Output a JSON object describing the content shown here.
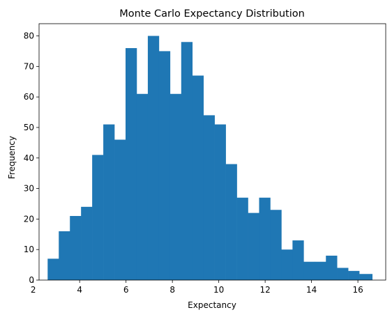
{
  "chart_data": {
    "type": "bar",
    "title": "Monte Carlo Expectancy Distribution",
    "xlabel": "Expectancy",
    "ylabel": "Frequency",
    "xlim": [
      2.25,
      17.2
    ],
    "ylim": [
      0,
      84
    ],
    "grid": false,
    "bar_color": "#1f77b4",
    "bin_edges": [
      2.62,
      3.1,
      3.58,
      4.06,
      4.54,
      5.02,
      5.5,
      5.98,
      6.46,
      6.94,
      7.42,
      7.9,
      8.38,
      8.86,
      9.34,
      9.82,
      10.3,
      10.78,
      11.26,
      11.74,
      12.22,
      12.7,
      13.18,
      13.66,
      14.14,
      14.62,
      15.1,
      15.58,
      16.06,
      16.54,
      16.62
    ],
    "values": [
      7,
      16,
      21,
      24,
      41,
      51,
      46,
      76,
      61,
      80,
      75,
      61,
      78,
      67,
      54,
      51,
      38,
      27,
      22,
      27,
      23,
      10,
      13,
      6,
      6,
      8,
      4,
      3,
      2,
      2
    ],
    "xticks": [
      2,
      4,
      6,
      8,
      10,
      12,
      14,
      16
    ],
    "yticks": [
      0,
      10,
      20,
      30,
      40,
      50,
      60,
      70,
      80
    ]
  }
}
